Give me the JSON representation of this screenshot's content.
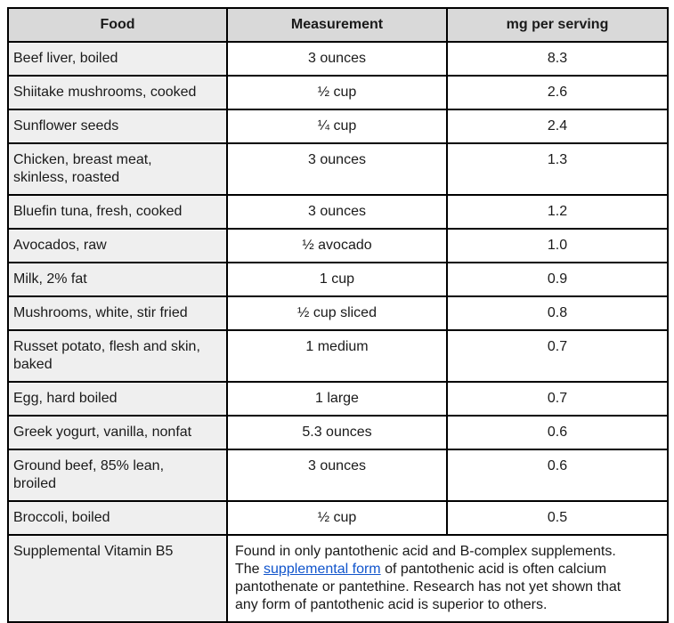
{
  "colors": {
    "header_bg": "#d9d9d9",
    "food_column_bg": "#efefef",
    "body_bg": "#ffffff",
    "border": "#000000",
    "link": "#1155cc",
    "text": "#1a1a1a"
  },
  "table": {
    "headers": [
      "Food",
      "Measurement",
      "mg per serving"
    ],
    "rows": [
      {
        "food": "Beef liver, boiled",
        "measurement": "3 ounces",
        "mg": "8.3"
      },
      {
        "food": "Shiitake mushrooms, cooked",
        "measurement": "½ cup",
        "mg": "2.6"
      },
      {
        "food": "Sunflower seeds",
        "measurement": "¼ cup",
        "mg": "2.4"
      },
      {
        "food": "Chicken, breast meat,\nskinless, roasted",
        "measurement": "3 ounces",
        "mg": "1.3"
      },
      {
        "food": "Bluefin tuna, fresh, cooked",
        "measurement": "3 ounces",
        "mg": "1.2"
      },
      {
        "food": "Avocados, raw",
        "measurement": "½ avocado",
        "mg": "1.0"
      },
      {
        "food": "Milk, 2% fat",
        "measurement": "1 cup",
        "mg": "0.9"
      },
      {
        "food": "Mushrooms, white, stir fried",
        "measurement": "½ cup sliced",
        "mg": "0.8"
      },
      {
        "food": "Russet potato, flesh and skin,\nbaked",
        "measurement": "1 medium",
        "mg": "0.7"
      },
      {
        "food": "Egg, hard boiled",
        "measurement": "1 large",
        "mg": "0.7"
      },
      {
        "food": "Greek yogurt, vanilla, nonfat",
        "measurement": "5.3 ounces",
        "mg": "0.6"
      },
      {
        "food": "Ground beef, 85% lean,\nbroiled",
        "measurement": "3 ounces",
        "mg": "0.6"
      },
      {
        "food": "Broccoli, boiled",
        "measurement": "½ cup",
        "mg": "0.5"
      }
    ],
    "supplemental_row": {
      "label": "Supplemental Vitamin B5",
      "note_before_link": "Found in only pantothenic acid and B-complex supplements.\nThe ",
      "link_text": "supplemental form",
      "note_after_link": " of pantothenic acid is often calcium\npantothenate or pantethine. Research has not yet shown that\nany form of pantothenic acid is superior to others."
    }
  }
}
